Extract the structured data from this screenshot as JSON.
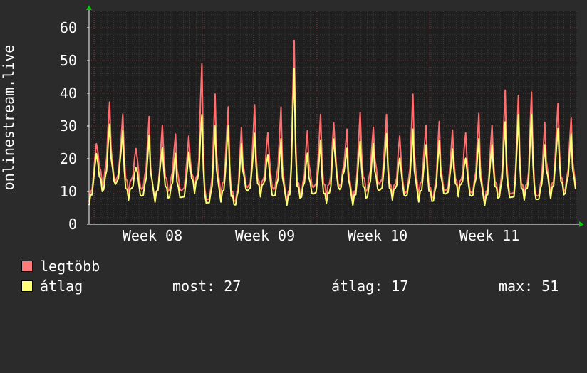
{
  "chart_data": {
    "type": "line",
    "ylabel": "onlinestream.live",
    "yticks": [
      0,
      10,
      20,
      30,
      40,
      50,
      60
    ],
    "ylim": [
      0,
      65
    ],
    "xticks": [
      "Week 08",
      "Week 09",
      "Week 10",
      "Week 11"
    ],
    "grid": true,
    "series": [
      {
        "name": "legtöbb",
        "color": "#ff6f6f",
        "peaks": [
          26,
          38,
          33,
          24,
          33,
          32,
          28,
          26,
          51,
          40,
          38,
          30,
          36,
          29,
          36,
          59,
          29,
          33,
          32,
          29,
          36,
          30,
          33,
          28,
          40,
          32,
          32,
          28,
          29,
          34,
          32,
          42,
          39,
          42,
          31,
          39,
          33
        ],
        "troughs": [
          8,
          12,
          12,
          10,
          10,
          8,
          10,
          9,
          11,
          7,
          10,
          7,
          10,
          10,
          10,
          8,
          9,
          10,
          9,
          11,
          8,
          10,
          11,
          9,
          9,
          10,
          8,
          9,
          10,
          9,
          8,
          9,
          8,
          9,
          8,
          10,
          10
        ]
      },
      {
        "name": "átlag",
        "color": "#ffff77",
        "peaks": [
          23,
          31,
          28,
          18,
          27,
          25,
          22,
          21,
          35,
          30,
          32,
          25,
          27,
          22,
          26,
          50,
          22,
          25,
          27,
          23,
          27,
          25,
          27,
          21,
          29,
          26,
          26,
          22,
          21,
          26,
          26,
          32,
          33,
          35,
          24,
          31,
          28
        ],
        "troughs": [
          7,
          10,
          11,
          8,
          8,
          8,
          8,
          7,
          10,
          6,
          8,
          6,
          9,
          9,
          8,
          7,
          8,
          8,
          7,
          10,
          7,
          8,
          9,
          8,
          8,
          8,
          7,
          8,
          9,
          8,
          7,
          8,
          7,
          8,
          7,
          9,
          9
        ]
      }
    ]
  },
  "legend": {
    "max_label": "legtöbb",
    "avg_label": "átlag",
    "max_color": "#ff7b7b",
    "avg_color": "#ffff77",
    "stats": {
      "now": "most: 27",
      "avg": "átlag: 17",
      "max": "max: 51"
    }
  }
}
